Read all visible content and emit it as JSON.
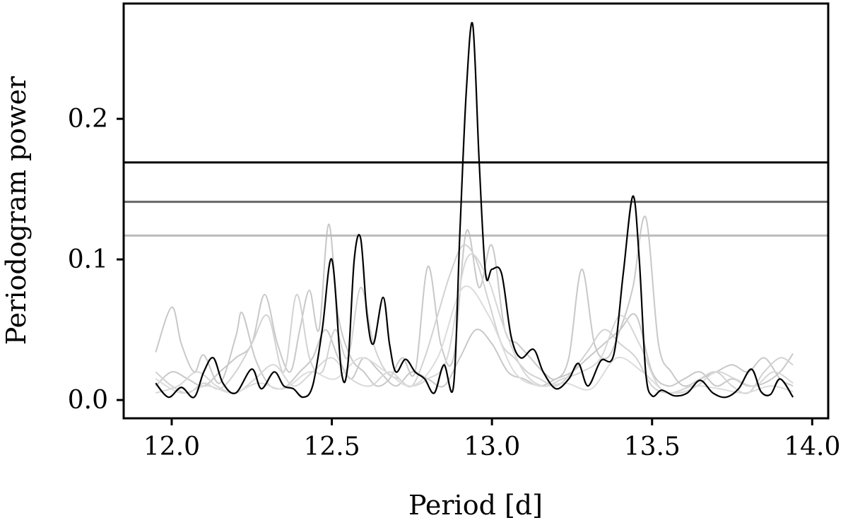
{
  "chart_data": {
    "type": "line",
    "xlabel": "Period [d]",
    "ylabel": "Periodogram power",
    "xlim": [
      11.85,
      14.05
    ],
    "ylim": [
      -0.013,
      0.282
    ],
    "xticks": [
      12.0,
      12.5,
      13.0,
      13.5,
      14.0
    ],
    "xtick_labels": [
      "12.0",
      "12.5",
      "13.0",
      "13.5",
      "14.0"
    ],
    "yticks": [
      0.0,
      0.1,
      0.2
    ],
    "ytick_labels": [
      "0.0",
      "0.1",
      "0.2"
    ],
    "grid": false,
    "thresholds": [
      {
        "value": 0.169,
        "color": "#000000"
      },
      {
        "value": 0.141,
        "color": "#666666"
      },
      {
        "value": 0.117,
        "color": "#bbbbbb"
      }
    ],
    "main_series": {
      "color": "#000000",
      "x": [
        11.95,
        11.99,
        12.03,
        12.07,
        12.1,
        12.13,
        12.16,
        12.2,
        12.25,
        12.28,
        12.32,
        12.35,
        12.38,
        12.41,
        12.44,
        12.47,
        12.5,
        12.53,
        12.55,
        12.57,
        12.59,
        12.61,
        12.63,
        12.66,
        12.68,
        12.7,
        12.73,
        12.76,
        12.79,
        12.82,
        12.85,
        12.88,
        12.9,
        12.92,
        12.94,
        12.96,
        12.98,
        13.0,
        13.03,
        13.06,
        13.09,
        13.13,
        13.16,
        13.2,
        13.24,
        13.27,
        13.3,
        13.34,
        13.38,
        13.41,
        13.44,
        13.46,
        13.48,
        13.5,
        13.53,
        13.57,
        13.61,
        13.65,
        13.69,
        13.73,
        13.77,
        13.81,
        13.84,
        13.87,
        13.9,
        13.94
      ],
      "y": [
        0.012,
        0.002,
        0.009,
        0.002,
        0.02,
        0.03,
        0.012,
        0.005,
        0.022,
        0.008,
        0.02,
        0.01,
        0.008,
        0.002,
        0.01,
        0.05,
        0.1,
        0.02,
        0.025,
        0.1,
        0.115,
        0.06,
        0.04,
        0.073,
        0.04,
        0.02,
        0.029,
        0.02,
        0.015,
        0.005,
        0.025,
        0.01,
        0.12,
        0.22,
        0.267,
        0.17,
        0.09,
        0.093,
        0.09,
        0.045,
        0.03,
        0.036,
        0.02,
        0.008,
        0.015,
        0.026,
        0.01,
        0.028,
        0.032,
        0.09,
        0.145,
        0.1,
        0.02,
        0.003,
        0.007,
        0.003,
        0.005,
        0.014,
        0.005,
        0.002,
        0.008,
        0.022,
        0.006,
        0.004,
        0.015,
        0.002
      ]
    },
    "background_series": [
      {
        "color": "#c8c8c8",
        "x": [
          11.95,
          12.0,
          12.03,
          12.07,
          12.1,
          12.15,
          12.2,
          12.22,
          12.26,
          12.3,
          12.33,
          12.36,
          12.4,
          12.44,
          12.48,
          12.52,
          12.56,
          12.6,
          12.65,
          12.7,
          12.75,
          12.8,
          12.85,
          12.9,
          12.95,
          13.0,
          13.05,
          13.1,
          13.15,
          13.2,
          13.25,
          13.3,
          13.35,
          13.4,
          13.45,
          13.5,
          13.55,
          13.6,
          13.65,
          13.7,
          13.75,
          13.8,
          13.85,
          13.9,
          13.94
        ],
        "y": [
          0.034,
          0.066,
          0.04,
          0.02,
          0.032,
          0.012,
          0.045,
          0.062,
          0.03,
          0.012,
          0.008,
          0.01,
          0.02,
          0.03,
          0.05,
          0.03,
          0.015,
          0.03,
          0.02,
          0.01,
          0.02,
          0.015,
          0.01,
          0.03,
          0.05,
          0.04,
          0.02,
          0.015,
          0.01,
          0.015,
          0.02,
          0.03,
          0.04,
          0.05,
          0.06,
          0.02,
          0.01,
          0.015,
          0.02,
          0.01,
          0.015,
          0.01,
          0.012,
          0.02,
          0.033
        ]
      },
      {
        "color": "#c8c8c8",
        "x": [
          11.95,
          12.0,
          12.05,
          12.1,
          12.15,
          12.2,
          12.25,
          12.29,
          12.33,
          12.37,
          12.4,
          12.43,
          12.46,
          12.49,
          12.52,
          12.56,
          12.6,
          12.64,
          12.68,
          12.72,
          12.76,
          12.8,
          12.84,
          12.88,
          12.92,
          12.96,
          13.0,
          13.04,
          13.08,
          13.12,
          13.16,
          13.2,
          13.24,
          13.28,
          13.32,
          13.36,
          13.4,
          13.44,
          13.48,
          13.52,
          13.56,
          13.6,
          13.65,
          13.7,
          13.75,
          13.8,
          13.85,
          13.9,
          13.94
        ],
        "y": [
          0.01,
          0.02,
          0.015,
          0.01,
          0.02,
          0.03,
          0.04,
          0.075,
          0.04,
          0.02,
          0.05,
          0.078,
          0.05,
          0.125,
          0.06,
          0.03,
          0.02,
          0.01,
          0.015,
          0.03,
          0.02,
          0.095,
          0.04,
          0.03,
          0.12,
          0.08,
          0.11,
          0.05,
          0.04,
          0.03,
          0.02,
          0.015,
          0.03,
          0.093,
          0.04,
          0.03,
          0.05,
          0.08,
          0.13,
          0.04,
          0.02,
          0.01,
          0.015,
          0.02,
          0.025,
          0.02,
          0.03,
          0.015,
          0.01
        ]
      },
      {
        "color": "#d2d2d2",
        "x": [
          11.95,
          12.0,
          12.05,
          12.1,
          12.15,
          12.2,
          12.25,
          12.3,
          12.35,
          12.39,
          12.43,
          12.47,
          12.51,
          12.55,
          12.59,
          12.63,
          12.67,
          12.71,
          12.75,
          12.79,
          12.83,
          12.87,
          12.91,
          12.95,
          12.99,
          13.03,
          13.07,
          13.11,
          13.15,
          13.2,
          13.25,
          13.3,
          13.35,
          13.4,
          13.45,
          13.5,
          13.55,
          13.6,
          13.65,
          13.7,
          13.75,
          13.8,
          13.85,
          13.9,
          13.94
        ],
        "y": [
          0.02,
          0.01,
          0.005,
          0.012,
          0.008,
          0.02,
          0.04,
          0.06,
          0.02,
          0.075,
          0.03,
          0.02,
          0.05,
          0.03,
          0.08,
          0.04,
          0.02,
          0.015,
          0.01,
          0.03,
          0.06,
          0.09,
          0.11,
          0.1,
          0.07,
          0.04,
          0.03,
          0.02,
          0.015,
          0.01,
          0.02,
          0.035,
          0.05,
          0.04,
          0.03,
          0.01,
          0.005,
          0.008,
          0.015,
          0.02,
          0.01,
          0.005,
          0.02,
          0.03,
          0.025
        ]
      },
      {
        "color": "#d7d7d7",
        "x": [
          11.95,
          12.02,
          12.08,
          12.14,
          12.2,
          12.26,
          12.32,
          12.38,
          12.44,
          12.5,
          12.56,
          12.62,
          12.68,
          12.74,
          12.8,
          12.86,
          12.92,
          12.98,
          13.04,
          13.1,
          13.16,
          13.22,
          13.28,
          13.34,
          13.4,
          13.46,
          13.52,
          13.58,
          13.64,
          13.7,
          13.76,
          13.82,
          13.88,
          13.94
        ],
        "y": [
          0.005,
          0.01,
          0.02,
          0.01,
          0.005,
          0.015,
          0.025,
          0.01,
          0.02,
          0.03,
          0.015,
          0.01,
          0.02,
          0.01,
          0.015,
          0.03,
          0.1,
          0.09,
          0.05,
          0.02,
          0.01,
          0.015,
          0.02,
          0.03,
          0.06,
          0.04,
          0.01,
          0.005,
          0.01,
          0.02,
          0.015,
          0.01,
          0.02,
          0.012
        ]
      },
      {
        "color": "#dcdcdc",
        "x": [
          11.95,
          12.03,
          12.11,
          12.19,
          12.27,
          12.35,
          12.43,
          12.51,
          12.59,
          12.67,
          12.75,
          12.83,
          12.91,
          12.99,
          13.07,
          13.15,
          13.23,
          13.31,
          13.39,
          13.47,
          13.55,
          13.63,
          13.71,
          13.79,
          13.87,
          13.94
        ],
        "y": [
          0.015,
          0.005,
          0.01,
          0.005,
          0.012,
          0.008,
          0.02,
          0.015,
          0.03,
          0.02,
          0.01,
          0.03,
          0.08,
          0.06,
          0.02,
          0.01,
          0.012,
          0.008,
          0.03,
          0.02,
          0.005,
          0.01,
          0.008,
          0.005,
          0.01,
          0.006
        ]
      }
    ]
  }
}
